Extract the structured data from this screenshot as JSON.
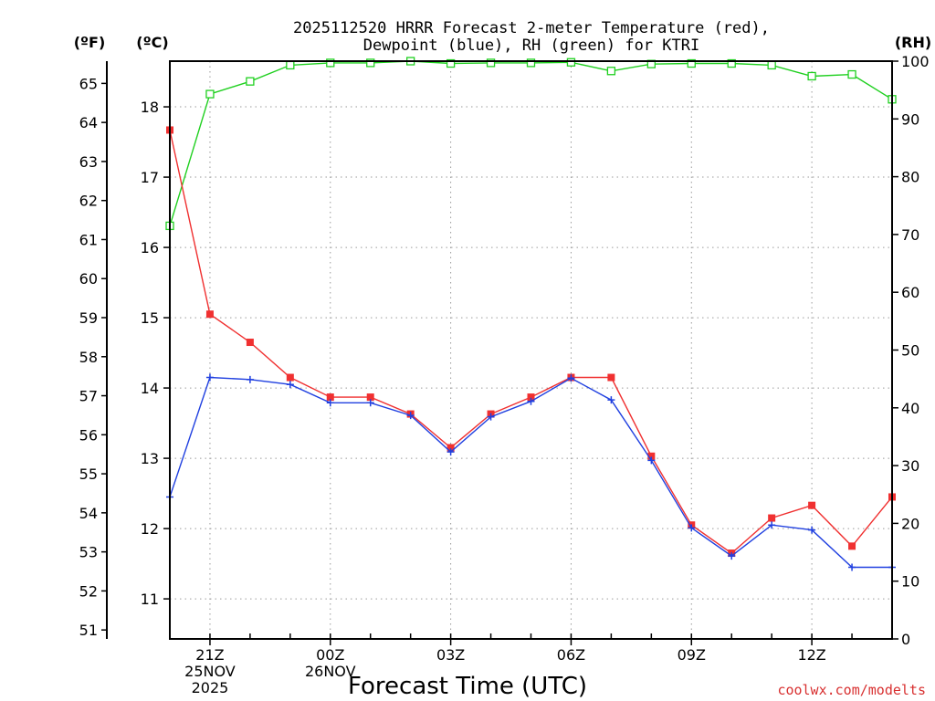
{
  "chart_data": {
    "type": "line",
    "title": "2025112520 HRRR Forecast 2-meter Temperature (red),",
    "subtitle": "Dewpoint (blue), RH (green) for KTRI",
    "xlabel": "Forecast Time (UTC)",
    "credit": "coolwx.com/modelts",
    "units": {
      "f": "(ºF)",
      "c": "(ºC)",
      "rh": "(RH)"
    },
    "x_hours": [
      0,
      1,
      2,
      3,
      4,
      5,
      6,
      7,
      8,
      9,
      10,
      11,
      12,
      13,
      14,
      15,
      16,
      17,
      18
    ],
    "x_ticks": [
      {
        "hour": 1,
        "lines": [
          "21Z",
          "25NOV",
          "2025"
        ]
      },
      {
        "hour": 4,
        "lines": [
          "00Z",
          "26NOV"
        ]
      },
      {
        "hour": 7,
        "lines": [
          "03Z"
        ]
      },
      {
        "hour": 10,
        "lines": [
          "06Z"
        ]
      },
      {
        "hour": 13,
        "lines": [
          "09Z"
        ]
      },
      {
        "hour": 16,
        "lines": [
          "12Z"
        ]
      }
    ],
    "x_range": [
      0,
      18
    ],
    "c_axis": {
      "range": [
        10.43,
        18.65
      ],
      "ticks": [
        "11",
        "12",
        "13",
        "14",
        "15",
        "16",
        "17",
        "18"
      ]
    },
    "f_axis": {
      "range": [
        50.77,
        65.57
      ],
      "ticks": [
        "51",
        "52",
        "53",
        "54",
        "55",
        "56",
        "57",
        "58",
        "59",
        "60",
        "61",
        "62",
        "63",
        "64",
        "65"
      ]
    },
    "rh_axis": {
      "range": [
        0,
        100
      ],
      "ticks": [
        "0",
        "10",
        "20",
        "30",
        "40",
        "50",
        "60",
        "70",
        "80",
        "90",
        "100"
      ]
    },
    "grid": true,
    "series": [
      {
        "name": "Temperature",
        "color": "#f03030",
        "marker": "filled-square",
        "axis": "c",
        "values": [
          17.67,
          15.05,
          14.65,
          14.15,
          13.87,
          13.87,
          13.63,
          13.15,
          13.63,
          13.87,
          14.15,
          14.15,
          13.03,
          12.05,
          11.65,
          12.15,
          12.33,
          11.75,
          12.45
        ]
      },
      {
        "name": "Dewpoint",
        "color": "#2040e0",
        "marker": "plus",
        "axis": "c",
        "values": [
          12.45,
          14.15,
          14.12,
          14.05,
          13.79,
          13.79,
          13.61,
          13.09,
          13.59,
          13.81,
          14.14,
          13.83,
          12.97,
          12.01,
          11.61,
          12.05,
          11.98,
          11.45,
          11.45
        ]
      },
      {
        "name": "RH",
        "color": "#20d020",
        "marker": "open-square",
        "axis": "rh",
        "values": [
          71.5,
          94.3,
          96.5,
          99.3,
          99.7,
          99.7,
          100,
          99.6,
          99.7,
          99.7,
          99.8,
          98.3,
          99.5,
          99.6,
          99.6,
          99.3,
          97.4,
          97.7,
          93.4
        ]
      }
    ]
  }
}
